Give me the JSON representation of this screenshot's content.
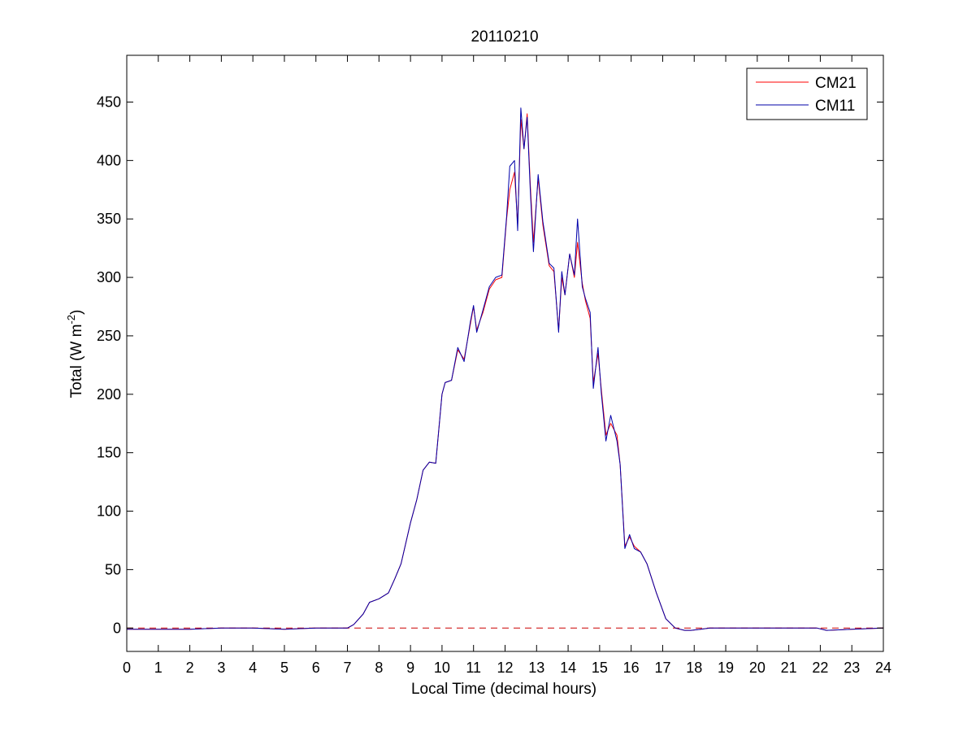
{
  "chart_data": {
    "type": "line",
    "title": "20110210",
    "xlabel": "Local Time (decimal hours)",
    "ylabel": {
      "text": "Total (W m",
      "superscript": "-2",
      "suffix": ")"
    },
    "xlim": [
      0,
      24
    ],
    "ylim": [
      -20,
      490
    ],
    "xticks": [
      0,
      1,
      2,
      3,
      4,
      5,
      6,
      7,
      8,
      9,
      10,
      11,
      12,
      13,
      14,
      15,
      16,
      17,
      18,
      19,
      20,
      21,
      22,
      23,
      24
    ],
    "yticks": [
      0,
      50,
      100,
      150,
      200,
      250,
      300,
      350,
      400,
      450
    ],
    "grid": false,
    "legend_position": "top-right",
    "reference_line": {
      "y": 0,
      "style": "dashed",
      "color": "#cc0000"
    },
    "series": [
      {
        "name": "CM21",
        "color": "#ff0000",
        "x": [
          0,
          1,
          2,
          3,
          4,
          5,
          6,
          7,
          7.2,
          7.5,
          7.7,
          8,
          8.3,
          8.5,
          8.7,
          9,
          9.2,
          9.4,
          9.6,
          9.8,
          10,
          10.1,
          10.3,
          10.5,
          10.7,
          10.9,
          11,
          11.1,
          11.3,
          11.5,
          11.7,
          11.9,
          12.05,
          12.15,
          12.3,
          12.4,
          12.5,
          12.6,
          12.7,
          12.8,
          12.9,
          13.05,
          13.2,
          13.4,
          13.55,
          13.7,
          13.8,
          13.9,
          14.05,
          14.2,
          14.3,
          14.45,
          14.55,
          14.7,
          14.8,
          14.95,
          15.05,
          15.2,
          15.35,
          15.55,
          15.65,
          15.8,
          15.95,
          16.1,
          16.3,
          16.5,
          16.8,
          17.1,
          17.4,
          17.7,
          17.9,
          18.2,
          18.5,
          19,
          20,
          21,
          21.9,
          22.2,
          23,
          24
        ],
        "values": [
          -1,
          -1,
          -1,
          0,
          0,
          -1,
          0,
          0,
          3,
          12,
          22,
          25,
          30,
          42,
          55,
          90,
          110,
          135,
          142,
          141,
          200,
          210,
          212,
          238,
          230,
          260,
          275,
          255,
          270,
          290,
          298,
          300,
          350,
          375,
          390,
          345,
          435,
          410,
          440,
          380,
          330,
          385,
          345,
          310,
          305,
          255,
          300,
          285,
          320,
          300,
          330,
          295,
          280,
          265,
          210,
          235,
          205,
          165,
          175,
          165,
          140,
          70,
          78,
          70,
          65,
          55,
          30,
          8,
          0,
          -2,
          -2,
          -1,
          0,
          0,
          0,
          0,
          0,
          -2,
          -1,
          0
        ]
      },
      {
        "name": "CM11",
        "color": "#0000aa",
        "x": [
          0,
          1,
          2,
          3,
          4,
          5,
          6,
          7,
          7.2,
          7.5,
          7.7,
          8,
          8.3,
          8.5,
          8.7,
          9,
          9.2,
          9.4,
          9.6,
          9.8,
          10,
          10.1,
          10.3,
          10.5,
          10.7,
          10.9,
          11,
          11.1,
          11.3,
          11.5,
          11.7,
          11.9,
          12.05,
          12.15,
          12.3,
          12.4,
          12.5,
          12.6,
          12.7,
          12.8,
          12.9,
          13.05,
          13.2,
          13.4,
          13.55,
          13.7,
          13.8,
          13.9,
          14.05,
          14.2,
          14.3,
          14.45,
          14.55,
          14.7,
          14.8,
          14.95,
          15.05,
          15.2,
          15.35,
          15.55,
          15.65,
          15.8,
          15.95,
          16.1,
          16.3,
          16.5,
          16.8,
          17.1,
          17.4,
          17.7,
          17.9,
          18.2,
          18.5,
          19,
          20,
          21,
          21.9,
          22.2,
          23,
          24
        ],
        "values": [
          -1,
          -1,
          -1,
          0,
          0,
          -1,
          0,
          0,
          3,
          12,
          22,
          25,
          30,
          42,
          55,
          90,
          110,
          135,
          142,
          141,
          200,
          210,
          212,
          240,
          228,
          262,
          276,
          253,
          272,
          292,
          300,
          302,
          352,
          395,
          400,
          340,
          445,
          410,
          437,
          375,
          322,
          388,
          348,
          312,
          308,
          253,
          305,
          285,
          320,
          302,
          350,
          292,
          282,
          270,
          205,
          240,
          202,
          160,
          182,
          160,
          140,
          68,
          80,
          68,
          65,
          55,
          30,
          8,
          0,
          -2,
          -2,
          -1,
          0,
          0,
          0,
          0,
          0,
          -2,
          -1,
          0
        ]
      }
    ]
  }
}
